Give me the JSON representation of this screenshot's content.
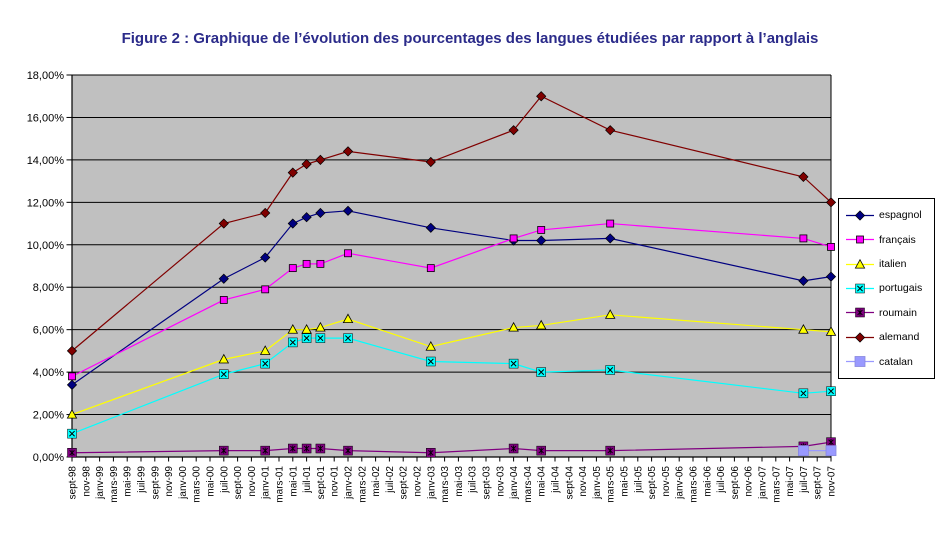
{
  "title": "Figure 2 : Graphique de l’évolution des pourcentages des langues étudiées par rapport à l’anglais",
  "title_color": "#2b2b8a",
  "plot": {
    "background": "#c0c0c0",
    "gridline_color": "#000000",
    "axis_color": "#000000"
  },
  "chart_data": {
    "type": "line",
    "title": "Figure 2 : Graphique de l’évolution des pourcentages des langues étudiées par rapport à l’anglais",
    "xlabel": "",
    "ylabel": "",
    "ylim": [
      0,
      18
    ],
    "grid": true,
    "legend_position": "right",
    "y_tick_labels": [
      "0,00%",
      "2,00%",
      "4,00%",
      "6,00%",
      "8,00%",
      "10,00%",
      "12,00%",
      "14,00%",
      "16,00%",
      "18,00%"
    ],
    "categories": [
      "sept-98",
      "nov-98",
      "janv-99",
      "mars-99",
      "mai-99",
      "juil-99",
      "sept-99",
      "nov-99",
      "janv-00",
      "mars-00",
      "mai-00",
      "juil-00",
      "sept-00",
      "nov-00",
      "janv-01",
      "mars-01",
      "mai-01",
      "juil-01",
      "sept-01",
      "nov-01",
      "janv-02",
      "mars-02",
      "mai-02",
      "juil-02",
      "sept-02",
      "nov-02",
      "janv-03",
      "mars-03",
      "mai-03",
      "juil-03",
      "sept-03",
      "nov-03",
      "janv-04",
      "mars-04",
      "mai-04",
      "juil-04",
      "sept-04",
      "nov-04",
      "janv-05",
      "mars-05",
      "mai-05",
      "juil-05",
      "sept-05",
      "nov-05",
      "janv-06",
      "mars-06",
      "mai-06",
      "juil-06",
      "sept-06",
      "nov-06",
      "janv-07",
      "mars-07",
      "mai-07",
      "juil-07",
      "sept-07",
      "nov-07"
    ],
    "series": [
      {
        "name": "espagnol",
        "color": "#000080",
        "marker": "diamond",
        "points": [
          [
            "sept-98",
            3.4
          ],
          [
            "juil-00",
            8.4
          ],
          [
            "janv-01",
            9.4
          ],
          [
            "mai-01",
            11.0
          ],
          [
            "juil-01",
            11.3
          ],
          [
            "sept-01",
            11.5
          ],
          [
            "janv-02",
            11.6
          ],
          [
            "janv-03",
            10.8
          ],
          [
            "janv-04",
            10.2
          ],
          [
            "mai-04",
            10.2
          ],
          [
            "mars-05",
            10.3
          ],
          [
            "juil-07",
            8.3
          ],
          [
            "nov-07",
            8.5
          ]
        ]
      },
      {
        "name": "français",
        "color": "#ff00ff",
        "marker": "square",
        "points": [
          [
            "sept-98",
            3.8
          ],
          [
            "juil-00",
            7.4
          ],
          [
            "janv-01",
            7.9
          ],
          [
            "mai-01",
            8.9
          ],
          [
            "juil-01",
            9.1
          ],
          [
            "sept-01",
            9.1
          ],
          [
            "janv-02",
            9.6
          ],
          [
            "janv-03",
            8.9
          ],
          [
            "janv-04",
            10.3
          ],
          [
            "mai-04",
            10.7
          ],
          [
            "mars-05",
            11.0
          ],
          [
            "juil-07",
            10.3
          ],
          [
            "nov-07",
            9.9
          ]
        ]
      },
      {
        "name": "italien",
        "color": "#ffff00",
        "marker": "triangle",
        "points": [
          [
            "sept-98",
            2.0
          ],
          [
            "juil-00",
            4.6
          ],
          [
            "janv-01",
            5.0
          ],
          [
            "mai-01",
            6.0
          ],
          [
            "juil-01",
            6.0
          ],
          [
            "sept-01",
            6.1
          ],
          [
            "janv-02",
            6.5
          ],
          [
            "janv-03",
            5.2
          ],
          [
            "janv-04",
            6.1
          ],
          [
            "mai-04",
            6.2
          ],
          [
            "mars-05",
            6.7
          ],
          [
            "juil-07",
            6.0
          ],
          [
            "nov-07",
            5.9
          ]
        ]
      },
      {
        "name": "portugais",
        "color": "#00ffff",
        "marker": "x-square",
        "points": [
          [
            "sept-98",
            1.1
          ],
          [
            "juil-00",
            3.9
          ],
          [
            "janv-01",
            4.4
          ],
          [
            "mai-01",
            5.4
          ],
          [
            "juil-01",
            5.6
          ],
          [
            "sept-01",
            5.6
          ],
          [
            "janv-02",
            5.6
          ],
          [
            "janv-03",
            4.5
          ],
          [
            "janv-04",
            4.4
          ],
          [
            "mai-04",
            4.0
          ],
          [
            "mars-05",
            4.1
          ],
          [
            "juil-07",
            3.0
          ],
          [
            "nov-07",
            3.1
          ]
        ]
      },
      {
        "name": "roumain",
        "color": "#800080",
        "marker": "star-square",
        "points": [
          [
            "sept-98",
            0.2
          ],
          [
            "juil-00",
            0.3
          ],
          [
            "janv-01",
            0.3
          ],
          [
            "mai-01",
            0.4
          ],
          [
            "juil-01",
            0.4
          ],
          [
            "sept-01",
            0.4
          ],
          [
            "janv-02",
            0.3
          ],
          [
            "janv-03",
            0.2
          ],
          [
            "janv-04",
            0.4
          ],
          [
            "mai-04",
            0.3
          ],
          [
            "mars-05",
            0.3
          ],
          [
            "juil-07",
            0.5
          ],
          [
            "nov-07",
            0.7
          ]
        ]
      },
      {
        "name": "alemand",
        "color": "#800000",
        "marker": "diamond",
        "points": [
          [
            "sept-98",
            5.0
          ],
          [
            "juil-00",
            11.0
          ],
          [
            "janv-01",
            11.5
          ],
          [
            "mai-01",
            13.4
          ],
          [
            "juil-01",
            13.8
          ],
          [
            "sept-01",
            14.0
          ],
          [
            "janv-02",
            14.4
          ],
          [
            "janv-03",
            13.9
          ],
          [
            "janv-04",
            15.4
          ],
          [
            "mai-04",
            17.0
          ],
          [
            "mars-05",
            15.4
          ],
          [
            "juil-07",
            13.2
          ],
          [
            "nov-07",
            12.0
          ]
        ]
      },
      {
        "name": "catalan",
        "color": "#9999ff",
        "marker": "square-large",
        "points": [
          [
            "juil-07",
            0.3
          ],
          [
            "nov-07",
            0.3
          ]
        ]
      }
    ]
  },
  "legend": {
    "entries": [
      "espagnol",
      "français",
      "italien",
      "portugais",
      "roumain",
      "alemand",
      "catalan"
    ]
  }
}
